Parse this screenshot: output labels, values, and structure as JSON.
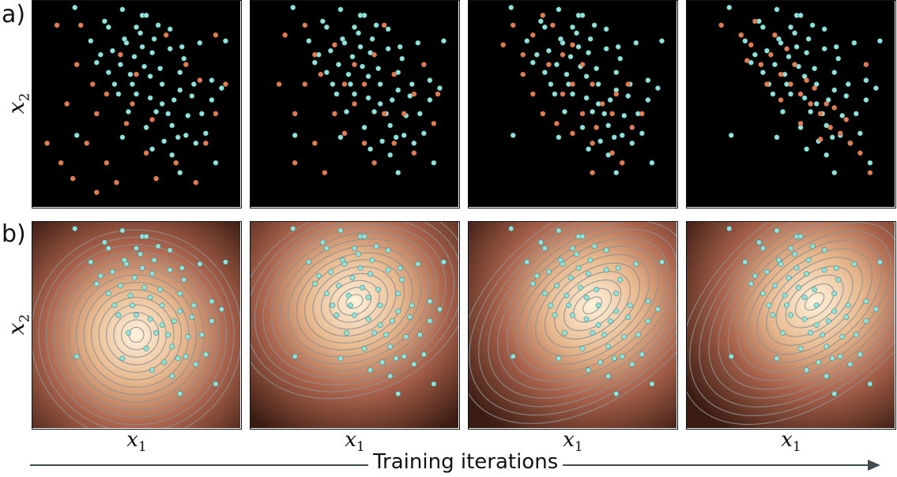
{
  "labels": {
    "row_a": "a)",
    "row_b": "b)",
    "y_axis": "x",
    "y_sub": "2",
    "x_axis": "x",
    "x_sub": "1",
    "training": "Training iterations"
  },
  "colors": {
    "true_point": "#8fe3dc",
    "generated_point": "#e07b52",
    "panel_bg": "#000000",
    "contour": "#8f8f8f",
    "density_low": "#3a1b12",
    "density_high": "#fff3dd",
    "arrow": "#3e4a4d"
  },
  "true_points": [
    [
      -0.05,
      0.74
    ],
    [
      0.19,
      0.99
    ],
    [
      0.36,
      0.89
    ],
    [
      0.53,
      0.95
    ],
    [
      0.44,
      0.83
    ],
    [
      0.49,
      0.74
    ],
    [
      0.67,
      0.78
    ],
    [
      0.82,
      0.81
    ],
    [
      0.72,
      0.66
    ],
    [
      0.63,
      0.6
    ],
    [
      0.57,
      0.53
    ],
    [
      0.6,
      0.46
    ],
    [
      0.68,
      0.39
    ],
    [
      0.55,
      0.38
    ],
    [
      0.64,
      0.31
    ],
    [
      0.76,
      0.44
    ],
    [
      0.75,
      0.34
    ],
    [
      0.88,
      0.52
    ],
    [
      0.88,
      0.62
    ],
    [
      0.57,
      0.64
    ],
    [
      0.48,
      0.6
    ],
    [
      0.36,
      0.66
    ],
    [
      0.32,
      0.75
    ],
    [
      0.42,
      0.7
    ],
    [
      0.52,
      0.86
    ],
    [
      0.61,
      0.9
    ],
    [
      0.43,
      0.98
    ],
    [
      0.54,
      0.69
    ],
    [
      0.58,
      0.76
    ],
    [
      0.69,
      0.52
    ],
    [
      0.68,
      0.24
    ],
    [
      0.8,
      0.3
    ],
    [
      0.72,
      0.57
    ],
    [
      0.46,
      0.46
    ],
    [
      0.5,
      0.55
    ],
    [
      0.41,
      0.55
    ],
    [
      0.93,
      0.58
    ],
    [
      0.62,
      0.68
    ],
    [
      0.38,
      0.77
    ],
    [
      0.27,
      0.82
    ],
    [
      0.34,
      0.92
    ],
    [
      0.45,
      0.81
    ],
    [
      0.59,
      0.83
    ],
    [
      0.67,
      0.88
    ],
    [
      0.74,
      0.73
    ],
    [
      0.79,
      0.6
    ],
    [
      0.83,
      0.45
    ],
    [
      0.66,
      0.45
    ],
    [
      0.58,
      0.27
    ],
    [
      0.85,
      0.35
    ],
    [
      0.47,
      0.65
    ],
    [
      0.53,
      0.79
    ],
    [
      0.39,
      0.6
    ],
    [
      0.73,
      0.79
    ],
    [
      0.63,
      0.5
    ],
    [
      0.71,
      0.33
    ],
    [
      0.55,
      0.95
    ],
    [
      0.3,
      0.71
    ],
    [
      0.5,
      0.89
    ],
    [
      0.78,
      0.54
    ],
    [
      0.2,
      0.34
    ],
    [
      0.72,
      0.15
    ],
    [
      0.43,
      0.33
    ],
    [
      0.95,
      0.82
    ],
    [
      0.9,
      0.2
    ]
  ],
  "generated_sets": [
    [
      [
        0.1,
        0.9
      ],
      [
        0.2,
        0.7
      ],
      [
        0.15,
        0.5
      ],
      [
        0.25,
        0.3
      ],
      [
        0.3,
        0.45
      ],
      [
        0.35,
        0.2
      ],
      [
        0.4,
        0.1
      ],
      [
        0.45,
        0.4
      ],
      [
        0.55,
        0.25
      ],
      [
        0.6,
        0.12
      ],
      [
        0.7,
        0.2
      ],
      [
        0.8,
        0.1
      ],
      [
        0.85,
        0.3
      ],
      [
        0.9,
        0.45
      ],
      [
        0.95,
        0.6
      ],
      [
        0.05,
        0.3
      ],
      [
        0.12,
        0.2
      ],
      [
        0.28,
        0.6
      ],
      [
        0.65,
        0.85
      ],
      [
        0.75,
        0.7
      ],
      [
        0.5,
        0.65
      ],
      [
        0.42,
        0.75
      ],
      [
        0.3,
        0.05
      ],
      [
        0.18,
        0.12
      ],
      [
        0.58,
        0.42
      ],
      [
        0.35,
        0.55
      ],
      [
        0.22,
        0.9
      ],
      [
        0.48,
        0.5
      ],
      [
        0.82,
        0.62
      ],
      [
        0.9,
        0.85
      ]
    ],
    [
      [
        0.15,
        0.85
      ],
      [
        0.25,
        0.6
      ],
      [
        0.2,
        0.45
      ],
      [
        0.3,
        0.3
      ],
      [
        0.35,
        0.15
      ],
      [
        0.45,
        0.35
      ],
      [
        0.55,
        0.3
      ],
      [
        0.6,
        0.2
      ],
      [
        0.7,
        0.3
      ],
      [
        0.8,
        0.25
      ],
      [
        0.9,
        0.4
      ],
      [
        0.92,
        0.55
      ],
      [
        0.3,
        0.75
      ],
      [
        0.4,
        0.8
      ],
      [
        0.5,
        0.7
      ],
      [
        0.6,
        0.75
      ],
      [
        0.7,
        0.65
      ],
      [
        0.8,
        0.55
      ],
      [
        0.2,
        0.2
      ],
      [
        0.4,
        0.45
      ],
      [
        0.5,
        0.5
      ],
      [
        0.65,
        0.45
      ],
      [
        0.75,
        0.45
      ],
      [
        0.33,
        0.65
      ],
      [
        0.45,
        0.6
      ],
      [
        0.55,
        0.6
      ],
      [
        0.25,
        0.9
      ],
      [
        0.12,
        0.6
      ],
      [
        0.85,
        0.7
      ],
      [
        0.65,
        0.9
      ]
    ],
    [
      [
        0.15,
        0.8
      ],
      [
        0.25,
        0.65
      ],
      [
        0.3,
        0.55
      ],
      [
        0.35,
        0.45
      ],
      [
        0.42,
        0.4
      ],
      [
        0.5,
        0.35
      ],
      [
        0.6,
        0.3
      ],
      [
        0.7,
        0.25
      ],
      [
        0.75,
        0.2
      ],
      [
        0.8,
        0.38
      ],
      [
        0.85,
        0.45
      ],
      [
        0.3,
        0.85
      ],
      [
        0.4,
        0.9
      ],
      [
        0.5,
        0.8
      ],
      [
        0.55,
        0.7
      ],
      [
        0.6,
        0.6
      ],
      [
        0.65,
        0.5
      ],
      [
        0.7,
        0.45
      ],
      [
        0.45,
        0.55
      ],
      [
        0.5,
        0.6
      ],
      [
        0.38,
        0.7
      ],
      [
        0.45,
        0.75
      ],
      [
        0.25,
        0.75
      ],
      [
        0.55,
        0.45
      ],
      [
        0.62,
        0.38
      ],
      [
        0.72,
        0.55
      ],
      [
        0.2,
        0.9
      ],
      [
        0.35,
        0.95
      ],
      [
        0.6,
        0.15
      ],
      [
        0.78,
        0.6
      ]
    ],
    [
      [
        0.15,
        0.9
      ],
      [
        0.25,
        0.85
      ],
      [
        0.3,
        0.8
      ],
      [
        0.35,
        0.7
      ],
      [
        0.4,
        0.75
      ],
      [
        0.45,
        0.65
      ],
      [
        0.5,
        0.6
      ],
      [
        0.55,
        0.55
      ],
      [
        0.6,
        0.5
      ],
      [
        0.65,
        0.45
      ],
      [
        0.7,
        0.38
      ],
      [
        0.75,
        0.35
      ],
      [
        0.8,
        0.3
      ],
      [
        0.85,
        0.25
      ],
      [
        0.9,
        0.15
      ],
      [
        0.32,
        0.92
      ],
      [
        0.42,
        0.85
      ],
      [
        0.48,
        0.78
      ],
      [
        0.52,
        0.7
      ],
      [
        0.58,
        0.62
      ],
      [
        0.62,
        0.58
      ],
      [
        0.68,
        0.5
      ],
      [
        0.72,
        0.48
      ],
      [
        0.78,
        0.42
      ],
      [
        0.55,
        0.4
      ],
      [
        0.65,
        0.32
      ],
      [
        0.38,
        0.6
      ],
      [
        0.45,
        0.52
      ],
      [
        0.28,
        0.72
      ],
      [
        0.88,
        0.7
      ]
    ]
  ],
  "density_centers": [
    [
      0.5,
      0.45
    ],
    [
      0.5,
      0.62
    ],
    [
      0.6,
      0.6
    ],
    [
      0.62,
      0.62
    ]
  ]
}
